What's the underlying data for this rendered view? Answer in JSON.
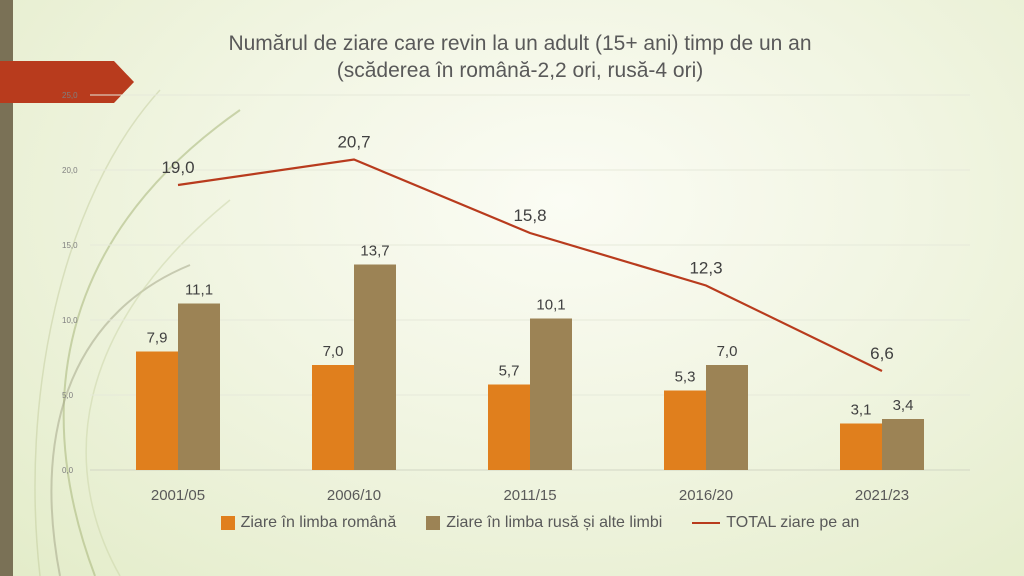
{
  "chart_data": {
    "type": "bar+line",
    "title": "Numărul de ziare care revin la un adult (15+ ani) timp de un an",
    "subtitle": "(scăderea în română-2,2 ori, rusă-4 ori)",
    "categories": [
      "2001/05",
      "2006/10",
      "2011/15",
      "2016/20",
      "2021/23"
    ],
    "y_ticks": [
      "0,0",
      "5,0",
      "10,0",
      "15,0",
      "20,0",
      "25,0"
    ],
    "ylim": [
      0,
      25
    ],
    "grid": true,
    "legend_position": "bottom",
    "series": [
      {
        "name": "Ziare în limba română",
        "kind": "bar",
        "color": "#e07f1d",
        "values": [
          7.9,
          7.0,
          5.7,
          5.3,
          3.1
        ],
        "labels": [
          "7,9",
          "7,0",
          "5,7",
          "5,3",
          "3,1"
        ]
      },
      {
        "name": "Ziare în limba rusă și alte limbi",
        "kind": "bar",
        "color": "#9c8355",
        "values": [
          11.1,
          13.7,
          10.1,
          7.0,
          3.4
        ],
        "labels": [
          "11,1",
          "13,7",
          "10,1",
          "7,0",
          "3,4"
        ]
      },
      {
        "name": "TOTAL ziare pe an",
        "kind": "line",
        "color": "#b83b1d",
        "values": [
          19.0,
          20.7,
          15.8,
          12.3,
          6.6
        ],
        "labels": [
          "19,0",
          "20,7",
          "15,8",
          "12,3",
          "6,6"
        ]
      }
    ]
  }
}
